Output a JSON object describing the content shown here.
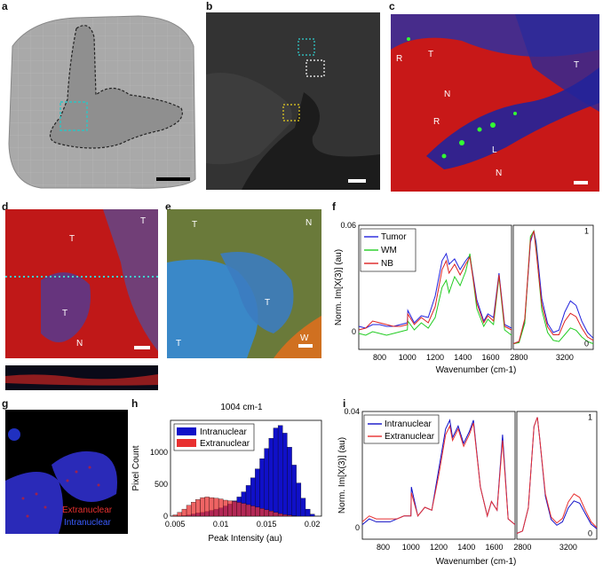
{
  "panels": {
    "a": {
      "label": "a"
    },
    "b": {
      "label": "b"
    },
    "c": {
      "label": "c",
      "annotations": [
        "R",
        "T",
        "T",
        "N",
        "R",
        "L",
        "N"
      ]
    },
    "d": {
      "label": "d",
      "annotations": [
        "T",
        "T",
        "T",
        "N"
      ]
    },
    "e": {
      "label": "e",
      "annotations": [
        "T",
        "N",
        "T",
        "T",
        "W"
      ]
    },
    "f": {
      "label": "f"
    },
    "g": {
      "label": "g",
      "legend": [
        "Extranuclear",
        "Intranuclear"
      ]
    },
    "h": {
      "label": "h"
    },
    "i": {
      "label": "i"
    }
  },
  "colors": {
    "tumor": "#2222dd",
    "wm": "#22cc22",
    "nb": "#dd2222",
    "intranuclear": "#1010c8",
    "extranuclear": "#e83030"
  },
  "chart_data": [
    {
      "type": "line",
      "panel": "f",
      "ylabel": "Norm. Im[X(3)] (au)",
      "xlabel": "Wavenumber (cm-1)",
      "left_ticks_x": [
        "800",
        "1000",
        "1200",
        "1400",
        "1600"
      ],
      "right_ticks_x": [
        "2800",
        "3200"
      ],
      "left_ticks_y": [
        "0",
        "0.06"
      ],
      "right_ticks_y": [
        "0",
        "1"
      ],
      "left_xlim": [
        650,
        1750
      ],
      "right_xlim": [
        2750,
        3450
      ],
      "left_ylim": [
        -0.01,
        0.06
      ],
      "right_ylim": [
        -0.05,
        1.05
      ],
      "legend": [
        "Tumor",
        "WM",
        "NB"
      ],
      "series": [
        {
          "name": "Tumor",
          "x": [
            650,
            700,
            750,
            800,
            850,
            900,
            950,
            1000,
            1003,
            1050,
            1100,
            1150,
            1200,
            1250,
            1280,
            1300,
            1340,
            1380,
            1420,
            1450,
            1500,
            1550,
            1580,
            1620,
            1660,
            1700,
            1750
          ],
          "y": [
            0.003,
            0.002,
            0.004,
            0.004,
            0.003,
            0.003,
            0.004,
            0.005,
            0.012,
            0.005,
            0.009,
            0.008,
            0.02,
            0.04,
            0.044,
            0.038,
            0.041,
            0.035,
            0.04,
            0.043,
            0.018,
            0.006,
            0.01,
            0.008,
            0.033,
            0.004,
            0.002
          ],
          "rx": [
            2750,
            2800,
            2850,
            2900,
            2930,
            2950,
            3000,
            3050,
            3100,
            3150,
            3200,
            3250,
            3300,
            3350,
            3400,
            3450
          ],
          "ry": [
            0.0,
            0.02,
            0.2,
            0.9,
            1.0,
            0.9,
            0.4,
            0.18,
            0.1,
            0.12,
            0.28,
            0.38,
            0.34,
            0.2,
            0.1,
            0.05
          ]
        },
        {
          "name": "WM",
          "x": [
            650,
            700,
            750,
            800,
            850,
            900,
            950,
            1000,
            1003,
            1050,
            1100,
            1150,
            1200,
            1250,
            1280,
            1300,
            1340,
            1380,
            1420,
            1450,
            1500,
            1550,
            1580,
            1620,
            1660,
            1700,
            1750
          ],
          "y": [
            -0.001,
            -0.002,
            0.0,
            -0.001,
            -0.002,
            -0.001,
            0.0,
            0.001,
            0.006,
            0.001,
            0.005,
            0.002,
            0.008,
            0.025,
            0.029,
            0.022,
            0.031,
            0.026,
            0.034,
            0.044,
            0.013,
            0.003,
            0.007,
            0.004,
            0.031,
            0.001,
            -0.002
          ],
          "rx": [
            2750,
            2800,
            2850,
            2900,
            2930,
            2950,
            3000,
            3050,
            3100,
            3150,
            3200,
            3250,
            3300,
            3350,
            3400,
            3450
          ],
          "ry": [
            0.0,
            0.01,
            0.18,
            0.95,
            1.0,
            0.85,
            0.3,
            0.1,
            0.03,
            0.02,
            0.08,
            0.14,
            0.12,
            0.06,
            0.02,
            0.0
          ]
        },
        {
          "name": "NB",
          "x": [
            650,
            700,
            750,
            800,
            850,
            900,
            950,
            1000,
            1003,
            1050,
            1100,
            1150,
            1200,
            1250,
            1280,
            1300,
            1340,
            1380,
            1420,
            1450,
            1500,
            1550,
            1580,
            1620,
            1660,
            1700,
            1750
          ],
          "y": [
            0.001,
            0.002,
            0.006,
            0.005,
            0.004,
            0.003,
            0.003,
            0.004,
            0.01,
            0.004,
            0.008,
            0.005,
            0.014,
            0.035,
            0.04,
            0.033,
            0.038,
            0.032,
            0.038,
            0.042,
            0.016,
            0.005,
            0.009,
            0.006,
            0.032,
            0.003,
            0.001
          ],
          "rx": [
            2750,
            2800,
            2850,
            2900,
            2930,
            2950,
            3000,
            3050,
            3100,
            3150,
            3200,
            3250,
            3300,
            3350,
            3400,
            3450
          ],
          "ry": [
            0.0,
            0.02,
            0.22,
            0.92,
            1.0,
            0.82,
            0.35,
            0.15,
            0.08,
            0.08,
            0.2,
            0.27,
            0.24,
            0.14,
            0.06,
            0.03
          ]
        }
      ]
    },
    {
      "type": "bar",
      "panel": "h",
      "title": "1004 cm-1",
      "xlabel": "Peak Intensity (au)",
      "ylabel": "Pixel Count",
      "xlim": [
        0.0045,
        0.021
      ],
      "ylim": [
        0,
        1500
      ],
      "ticks_x": [
        "0.005",
        "0.01",
        "0.015",
        "0.02"
      ],
      "ticks_y": [
        "0",
        "500",
        "1000"
      ],
      "legend": [
        "Intranuclear",
        "Extranuclear"
      ],
      "series": [
        {
          "name": "Intranuclear",
          "bin_centers": [
            0.0055,
            0.006,
            0.0065,
            0.007,
            0.0075,
            0.008,
            0.0085,
            0.009,
            0.0095,
            0.01,
            0.0105,
            0.011,
            0.0115,
            0.012,
            0.0125,
            0.013,
            0.0135,
            0.014,
            0.0145,
            0.015,
            0.0155,
            0.016,
            0.0165,
            0.017,
            0.0175,
            0.018,
            0.0185,
            0.019,
            0.0195,
            0.02
          ],
          "values": [
            5,
            10,
            20,
            35,
            50,
            60,
            75,
            90,
            110,
            130,
            160,
            190,
            240,
            300,
            380,
            480,
            600,
            740,
            900,
            1060,
            1220,
            1380,
            1420,
            1300,
            1080,
            800,
            520,
            280,
            110,
            30
          ]
        },
        {
          "name": "Extranuclear",
          "bin_centers": [
            0.005,
            0.0055,
            0.006,
            0.0065,
            0.007,
            0.0075,
            0.008,
            0.0085,
            0.009,
            0.0095,
            0.01,
            0.0105,
            0.011,
            0.0115,
            0.012,
            0.0125,
            0.013,
            0.0135,
            0.014,
            0.0145,
            0.015,
            0.0155,
            0.016,
            0.0165,
            0.017,
            0.0175,
            0.018
          ],
          "values": [
            20,
            60,
            110,
            170,
            220,
            260,
            290,
            300,
            290,
            280,
            270,
            250,
            240,
            230,
            215,
            200,
            180,
            160,
            140,
            120,
            100,
            80,
            60,
            40,
            25,
            15,
            5
          ]
        }
      ]
    },
    {
      "type": "line",
      "panel": "i",
      "ylabel": "Norm. Im[X(3)] (au)",
      "xlabel": "Wavenumber (cm-1)",
      "left_ticks_x": [
        "800",
        "1000",
        "1200",
        "1400",
        "1600"
      ],
      "right_ticks_x": [
        "2800",
        "3200"
      ],
      "left_ticks_y": [
        "0",
        "0.04"
      ],
      "right_ticks_y": [
        "0",
        "1"
      ],
      "left_xlim": [
        650,
        1750
      ],
      "right_xlim": [
        2750,
        3450
      ],
      "left_ylim": [
        -0.004,
        0.04
      ],
      "right_ylim": [
        -0.05,
        1.05
      ],
      "legend": [
        "Intranuclear",
        "Extranuclear"
      ],
      "series": [
        {
          "name": "Intranuclear",
          "x": [
            650,
            700,
            750,
            800,
            850,
            900,
            950,
            1000,
            1003,
            1050,
            1100,
            1150,
            1200,
            1250,
            1280,
            1300,
            1340,
            1380,
            1420,
            1450,
            1500,
            1550,
            1580,
            1620,
            1660,
            1700,
            1750
          ],
          "y": [
            0.001,
            0.003,
            0.002,
            0.002,
            0.002,
            0.003,
            0.004,
            0.004,
            0.014,
            0.004,
            0.007,
            0.006,
            0.02,
            0.034,
            0.037,
            0.031,
            0.035,
            0.029,
            0.033,
            0.037,
            0.014,
            0.004,
            0.009,
            0.006,
            0.032,
            0.003,
            0.001
          ],
          "rx": [
            2750,
            2800,
            2850,
            2900,
            2930,
            2950,
            3000,
            3050,
            3100,
            3150,
            3200,
            3250,
            3300,
            3350,
            3400,
            3450
          ],
          "ry": [
            0.0,
            0.02,
            0.22,
            0.92,
            1.0,
            0.82,
            0.32,
            0.12,
            0.07,
            0.1,
            0.22,
            0.28,
            0.26,
            0.17,
            0.08,
            0.04
          ]
        },
        {
          "name": "Extranuclear",
          "x": [
            650,
            700,
            750,
            800,
            850,
            900,
            950,
            1000,
            1003,
            1050,
            1100,
            1150,
            1200,
            1250,
            1280,
            1300,
            1340,
            1380,
            1420,
            1450,
            1500,
            1550,
            1580,
            1620,
            1660,
            1700,
            1750
          ],
          "y": [
            0.002,
            0.004,
            0.003,
            0.003,
            0.003,
            0.003,
            0.004,
            0.004,
            0.012,
            0.004,
            0.007,
            0.006,
            0.018,
            0.032,
            0.035,
            0.03,
            0.034,
            0.028,
            0.032,
            0.036,
            0.014,
            0.004,
            0.009,
            0.006,
            0.03,
            0.003,
            0.001
          ],
          "rx": [
            2750,
            2800,
            2850,
            2900,
            2930,
            2950,
            3000,
            3050,
            3100,
            3150,
            3200,
            3250,
            3300,
            3350,
            3400,
            3450
          ],
          "ry": [
            0.0,
            0.02,
            0.22,
            0.92,
            1.0,
            0.82,
            0.34,
            0.14,
            0.09,
            0.13,
            0.27,
            0.34,
            0.31,
            0.2,
            0.1,
            0.05
          ]
        }
      ]
    }
  ]
}
